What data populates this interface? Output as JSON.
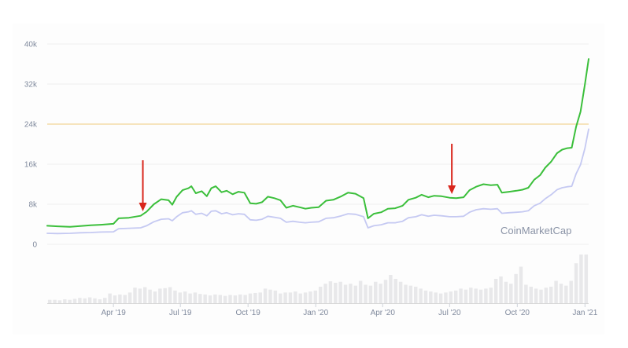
{
  "chart_data": {
    "type": "line",
    "watermark": "CoinMarketCap",
    "colors": {
      "series_a": "#3bbf3b",
      "series_b": "#c5c9f2",
      "reference_line": "#f3dca8",
      "volume_bars": "#e8e8ea",
      "arrow": "#d9261c",
      "grid": "#f0f0f0"
    },
    "ylim": [
      0,
      40000
    ],
    "y_ticks": [
      {
        "value": 40000,
        "label": "40k"
      },
      {
        "value": 32000,
        "label": "32k"
      },
      {
        "value": 24000,
        "label": "24k"
      },
      {
        "value": 16000,
        "label": "16k"
      },
      {
        "value": 8000,
        "label": "8k"
      },
      {
        "value": 0,
        "label": "0"
      }
    ],
    "x_ticks": [
      {
        "date": "2019-04-01",
        "label": "Apr '19"
      },
      {
        "date": "2019-07-01",
        "label": "Jul '19"
      },
      {
        "date": "2019-10-01",
        "label": "Oct '19"
      },
      {
        "date": "2020-01-01",
        "label": "Jan '20"
      },
      {
        "date": "2020-04-01",
        "label": "Apr '20"
      },
      {
        "date": "2020-07-01",
        "label": "Jul '20"
      },
      {
        "date": "2020-10-01",
        "label": "Oct '20"
      },
      {
        "date": "2021-01-01",
        "label": "Jan '21"
      }
    ],
    "x_range": [
      "2019-01-01",
      "2021-01-06"
    ],
    "reference_line_value": 24000,
    "arrows_at": [
      "2019-05-11",
      "2020-07-04"
    ],
    "series": [
      {
        "points": [
          [
            "2019-01-01",
            3700
          ],
          [
            "2019-01-15",
            3600
          ],
          [
            "2019-02-01",
            3500
          ],
          [
            "2019-02-15",
            3650
          ],
          [
            "2019-03-01",
            3800
          ],
          [
            "2019-03-15",
            3900
          ],
          [
            "2019-04-01",
            4100
          ],
          [
            "2019-04-08",
            5200
          ],
          [
            "2019-04-22",
            5300
          ],
          [
            "2019-05-08",
            5700
          ],
          [
            "2019-05-16",
            6500
          ],
          [
            "2019-05-26",
            8000
          ],
          [
            "2019-06-05",
            9000
          ],
          [
            "2019-06-15",
            8800
          ],
          [
            "2019-06-20",
            7900
          ],
          [
            "2019-06-26",
            9500
          ],
          [
            "2019-07-04",
            10800
          ],
          [
            "2019-07-12",
            11200
          ],
          [
            "2019-07-16",
            11600
          ],
          [
            "2019-07-22",
            10200
          ],
          [
            "2019-07-30",
            10600
          ],
          [
            "2019-08-06",
            9600
          ],
          [
            "2019-08-12",
            11200
          ],
          [
            "2019-08-18",
            11600
          ],
          [
            "2019-08-26",
            10400
          ],
          [
            "2019-09-02",
            10700
          ],
          [
            "2019-09-10",
            10000
          ],
          [
            "2019-09-18",
            10500
          ],
          [
            "2019-09-26",
            10300
          ],
          [
            "2019-10-04",
            8200
          ],
          [
            "2019-10-12",
            8100
          ],
          [
            "2019-10-20",
            8400
          ],
          [
            "2019-10-28",
            9500
          ],
          [
            "2019-11-06",
            9200
          ],
          [
            "2019-11-14",
            8800
          ],
          [
            "2019-11-22",
            7300
          ],
          [
            "2019-12-01",
            7700
          ],
          [
            "2019-12-10",
            7400
          ],
          [
            "2019-12-18",
            7100
          ],
          [
            "2019-12-26",
            7300
          ],
          [
            "2020-01-05",
            7400
          ],
          [
            "2020-01-15",
            8700
          ],
          [
            "2020-01-25",
            8900
          ],
          [
            "2020-02-05",
            9600
          ],
          [
            "2020-02-14",
            10300
          ],
          [
            "2020-02-24",
            10100
          ],
          [
            "2020-03-06",
            9200
          ],
          [
            "2020-03-12",
            5200
          ],
          [
            "2020-03-20",
            6100
          ],
          [
            "2020-03-30",
            6400
          ],
          [
            "2020-04-08",
            7100
          ],
          [
            "2020-04-18",
            7200
          ],
          [
            "2020-04-28",
            7700
          ],
          [
            "2020-05-06",
            8900
          ],
          [
            "2020-05-16",
            9300
          ],
          [
            "2020-05-24",
            9900
          ],
          [
            "2020-06-02",
            9400
          ],
          [
            "2020-06-10",
            9700
          ],
          [
            "2020-06-20",
            9600
          ],
          [
            "2020-07-01",
            9300
          ],
          [
            "2020-07-10",
            9200
          ],
          [
            "2020-07-20",
            9400
          ],
          [
            "2020-07-28",
            10800
          ],
          [
            "2020-08-06",
            11500
          ],
          [
            "2020-08-16",
            12000
          ],
          [
            "2020-08-26",
            11800
          ],
          [
            "2020-09-04",
            11900
          ],
          [
            "2020-09-10",
            10300
          ],
          [
            "2020-09-20",
            10500
          ],
          [
            "2020-09-30",
            10700
          ],
          [
            "2020-10-08",
            10900
          ],
          [
            "2020-10-16",
            11300
          ],
          [
            "2020-10-24",
            12900
          ],
          [
            "2020-11-01",
            13800
          ],
          [
            "2020-11-08",
            15300
          ],
          [
            "2020-11-16",
            16500
          ],
          [
            "2020-11-24",
            18200
          ],
          [
            "2020-12-01",
            18900
          ],
          [
            "2020-12-08",
            19200
          ],
          [
            "2020-12-14",
            19300
          ],
          [
            "2020-12-20",
            23500
          ],
          [
            "2020-12-26",
            26500
          ],
          [
            "2021-01-01",
            32000
          ],
          [
            "2021-01-06",
            37000
          ]
        ]
      },
      {
        "points": [
          [
            "2019-01-01",
            2200
          ],
          [
            "2019-01-15",
            2150
          ],
          [
            "2019-02-01",
            2200
          ],
          [
            "2019-02-15",
            2300
          ],
          [
            "2019-03-01",
            2350
          ],
          [
            "2019-03-15",
            2450
          ],
          [
            "2019-04-01",
            2500
          ],
          [
            "2019-04-08",
            3100
          ],
          [
            "2019-04-22",
            3200
          ],
          [
            "2019-05-08",
            3300
          ],
          [
            "2019-05-16",
            3700
          ],
          [
            "2019-05-26",
            4500
          ],
          [
            "2019-06-05",
            5000
          ],
          [
            "2019-06-15",
            5100
          ],
          [
            "2019-06-20",
            4700
          ],
          [
            "2019-06-26",
            5500
          ],
          [
            "2019-07-04",
            6300
          ],
          [
            "2019-07-12",
            6500
          ],
          [
            "2019-07-16",
            6700
          ],
          [
            "2019-07-22",
            6000
          ],
          [
            "2019-07-30",
            6200
          ],
          [
            "2019-08-06",
            5700
          ],
          [
            "2019-08-12",
            6600
          ],
          [
            "2019-08-18",
            6700
          ],
          [
            "2019-08-26",
            6100
          ],
          [
            "2019-09-02",
            6300
          ],
          [
            "2019-09-10",
            5900
          ],
          [
            "2019-09-18",
            6100
          ],
          [
            "2019-09-26",
            6000
          ],
          [
            "2019-10-04",
            4900
          ],
          [
            "2019-10-12",
            4800
          ],
          [
            "2019-10-20",
            5000
          ],
          [
            "2019-10-28",
            5600
          ],
          [
            "2019-11-06",
            5400
          ],
          [
            "2019-11-14",
            5200
          ],
          [
            "2019-11-22",
            4400
          ],
          [
            "2019-12-01",
            4600
          ],
          [
            "2019-12-10",
            4400
          ],
          [
            "2019-12-18",
            4300
          ],
          [
            "2019-12-26",
            4400
          ],
          [
            "2020-01-05",
            4500
          ],
          [
            "2020-01-15",
            5200
          ],
          [
            "2020-01-25",
            5300
          ],
          [
            "2020-02-05",
            5700
          ],
          [
            "2020-02-14",
            6100
          ],
          [
            "2020-02-24",
            6000
          ],
          [
            "2020-03-06",
            5500
          ],
          [
            "2020-03-12",
            3300
          ],
          [
            "2020-03-20",
            3700
          ],
          [
            "2020-03-30",
            3900
          ],
          [
            "2020-04-08",
            4300
          ],
          [
            "2020-04-18",
            4300
          ],
          [
            "2020-04-28",
            4600
          ],
          [
            "2020-05-06",
            5300
          ],
          [
            "2020-05-16",
            5500
          ],
          [
            "2020-05-24",
            5900
          ],
          [
            "2020-06-02",
            5600
          ],
          [
            "2020-06-10",
            5800
          ],
          [
            "2020-06-20",
            5700
          ],
          [
            "2020-07-01",
            5500
          ],
          [
            "2020-07-10",
            5500
          ],
          [
            "2020-07-20",
            5600
          ],
          [
            "2020-07-28",
            6400
          ],
          [
            "2020-08-06",
            6900
          ],
          [
            "2020-08-16",
            7100
          ],
          [
            "2020-08-26",
            7000
          ],
          [
            "2020-09-04",
            7100
          ],
          [
            "2020-09-10",
            6200
          ],
          [
            "2020-09-20",
            6300
          ],
          [
            "2020-09-30",
            6400
          ],
          [
            "2020-10-08",
            6500
          ],
          [
            "2020-10-16",
            6700
          ],
          [
            "2020-10-24",
            7700
          ],
          [
            "2020-11-01",
            8200
          ],
          [
            "2020-11-08",
            9100
          ],
          [
            "2020-11-16",
            9900
          ],
          [
            "2020-11-24",
            10900
          ],
          [
            "2020-12-01",
            11300
          ],
          [
            "2020-12-08",
            11500
          ],
          [
            "2020-12-14",
            11600
          ],
          [
            "2020-12-20",
            14100
          ],
          [
            "2020-12-26",
            15900
          ],
          [
            "2021-01-01",
            19200
          ],
          [
            "2021-01-06",
            23000
          ]
        ]
      }
    ],
    "volume_note": "relative trading volume (0-1), one bar per week",
    "volume": [
      0.07,
      0.07,
      0.06,
      0.08,
      0.07,
      0.09,
      0.11,
      0.1,
      0.12,
      0.1,
      0.08,
      0.11,
      0.2,
      0.16,
      0.18,
      0.17,
      0.22,
      0.32,
      0.3,
      0.33,
      0.28,
      0.24,
      0.3,
      0.31,
      0.33,
      0.26,
      0.22,
      0.24,
      0.2,
      0.22,
      0.19,
      0.18,
      0.16,
      0.18,
      0.17,
      0.15,
      0.17,
      0.16,
      0.18,
      0.17,
      0.2,
      0.21,
      0.22,
      0.3,
      0.28,
      0.26,
      0.2,
      0.22,
      0.22,
      0.24,
      0.2,
      0.22,
      0.24,
      0.26,
      0.34,
      0.4,
      0.45,
      0.42,
      0.44,
      0.38,
      0.4,
      0.36,
      0.46,
      0.38,
      0.36,
      0.44,
      0.4,
      0.48,
      0.58,
      0.5,
      0.44,
      0.38,
      0.36,
      0.34,
      0.3,
      0.26,
      0.24,
      0.22,
      0.2,
      0.22,
      0.24,
      0.26,
      0.3,
      0.28,
      0.32,
      0.3,
      0.28,
      0.3,
      0.32,
      0.5,
      0.55,
      0.44,
      0.4,
      0.6,
      0.75,
      0.38,
      0.34,
      0.3,
      0.28,
      0.32,
      0.34,
      0.46,
      0.4,
      0.36,
      0.46,
      0.82,
      1.0,
      1.0
    ]
  }
}
